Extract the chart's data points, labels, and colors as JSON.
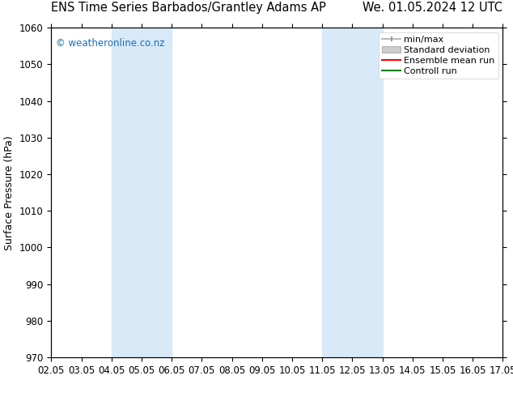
{
  "title_left": "ENS Time Series Barbados/Grantley Adams AP",
  "title_right": "We. 01.05.2024 12 UTC",
  "ylabel": "Surface Pressure (hPa)",
  "ylim": [
    970,
    1060
  ],
  "yticks": [
    970,
    980,
    990,
    1000,
    1010,
    1020,
    1030,
    1040,
    1050,
    1060
  ],
  "xtick_labels": [
    "02.05",
    "03.05",
    "04.05",
    "05.05",
    "06.05",
    "07.05",
    "08.05",
    "09.05",
    "10.05",
    "11.05",
    "12.05",
    "13.05",
    "14.05",
    "15.05",
    "16.05",
    "17.05"
  ],
  "shaded_regions": [
    {
      "xstart": 2,
      "xend": 4,
      "color": "#d8eaf8"
    },
    {
      "xstart": 9,
      "xend": 11,
      "color": "#d8eaf8"
    }
  ],
  "watermark": "© weatheronline.co.nz",
  "watermark_color": "#1a6eb5",
  "background_color": "#ffffff",
  "plot_bg_color": "#ffffff",
  "title_fontsize": 10.5,
  "axis_label_fontsize": 9,
  "tick_fontsize": 8.5,
  "legend_fontsize": 8
}
